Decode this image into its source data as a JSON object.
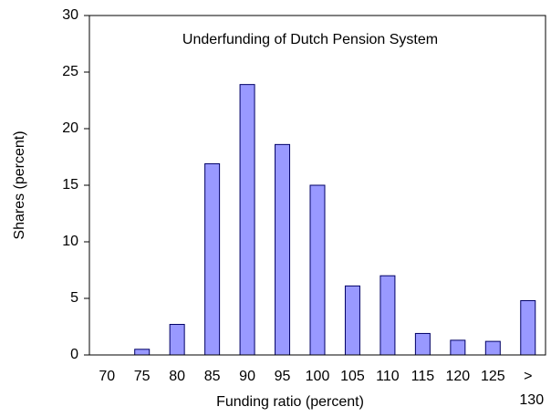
{
  "chart_data": {
    "type": "bar",
    "title": "Underfunding of Dutch Pension System",
    "x_label": "Funding ratio (percent)",
    "y_label": "Shares (percent)",
    "categories": [
      "70",
      "75",
      "80",
      "85",
      "90",
      "95",
      "100",
      "105",
      "110",
      "115",
      "120",
      "125",
      "> 130"
    ],
    "values": [
      0,
      0.5,
      2.7,
      16.9,
      23.9,
      18.6,
      15.0,
      6.1,
      7.0,
      1.9,
      1.3,
      1.2,
      4.8
    ],
    "color": "#9999ff",
    "ylim": [
      0,
      30
    ],
    "yticks": [
      0,
      5,
      10,
      15,
      20,
      25,
      30
    ],
    "grid": false
  }
}
